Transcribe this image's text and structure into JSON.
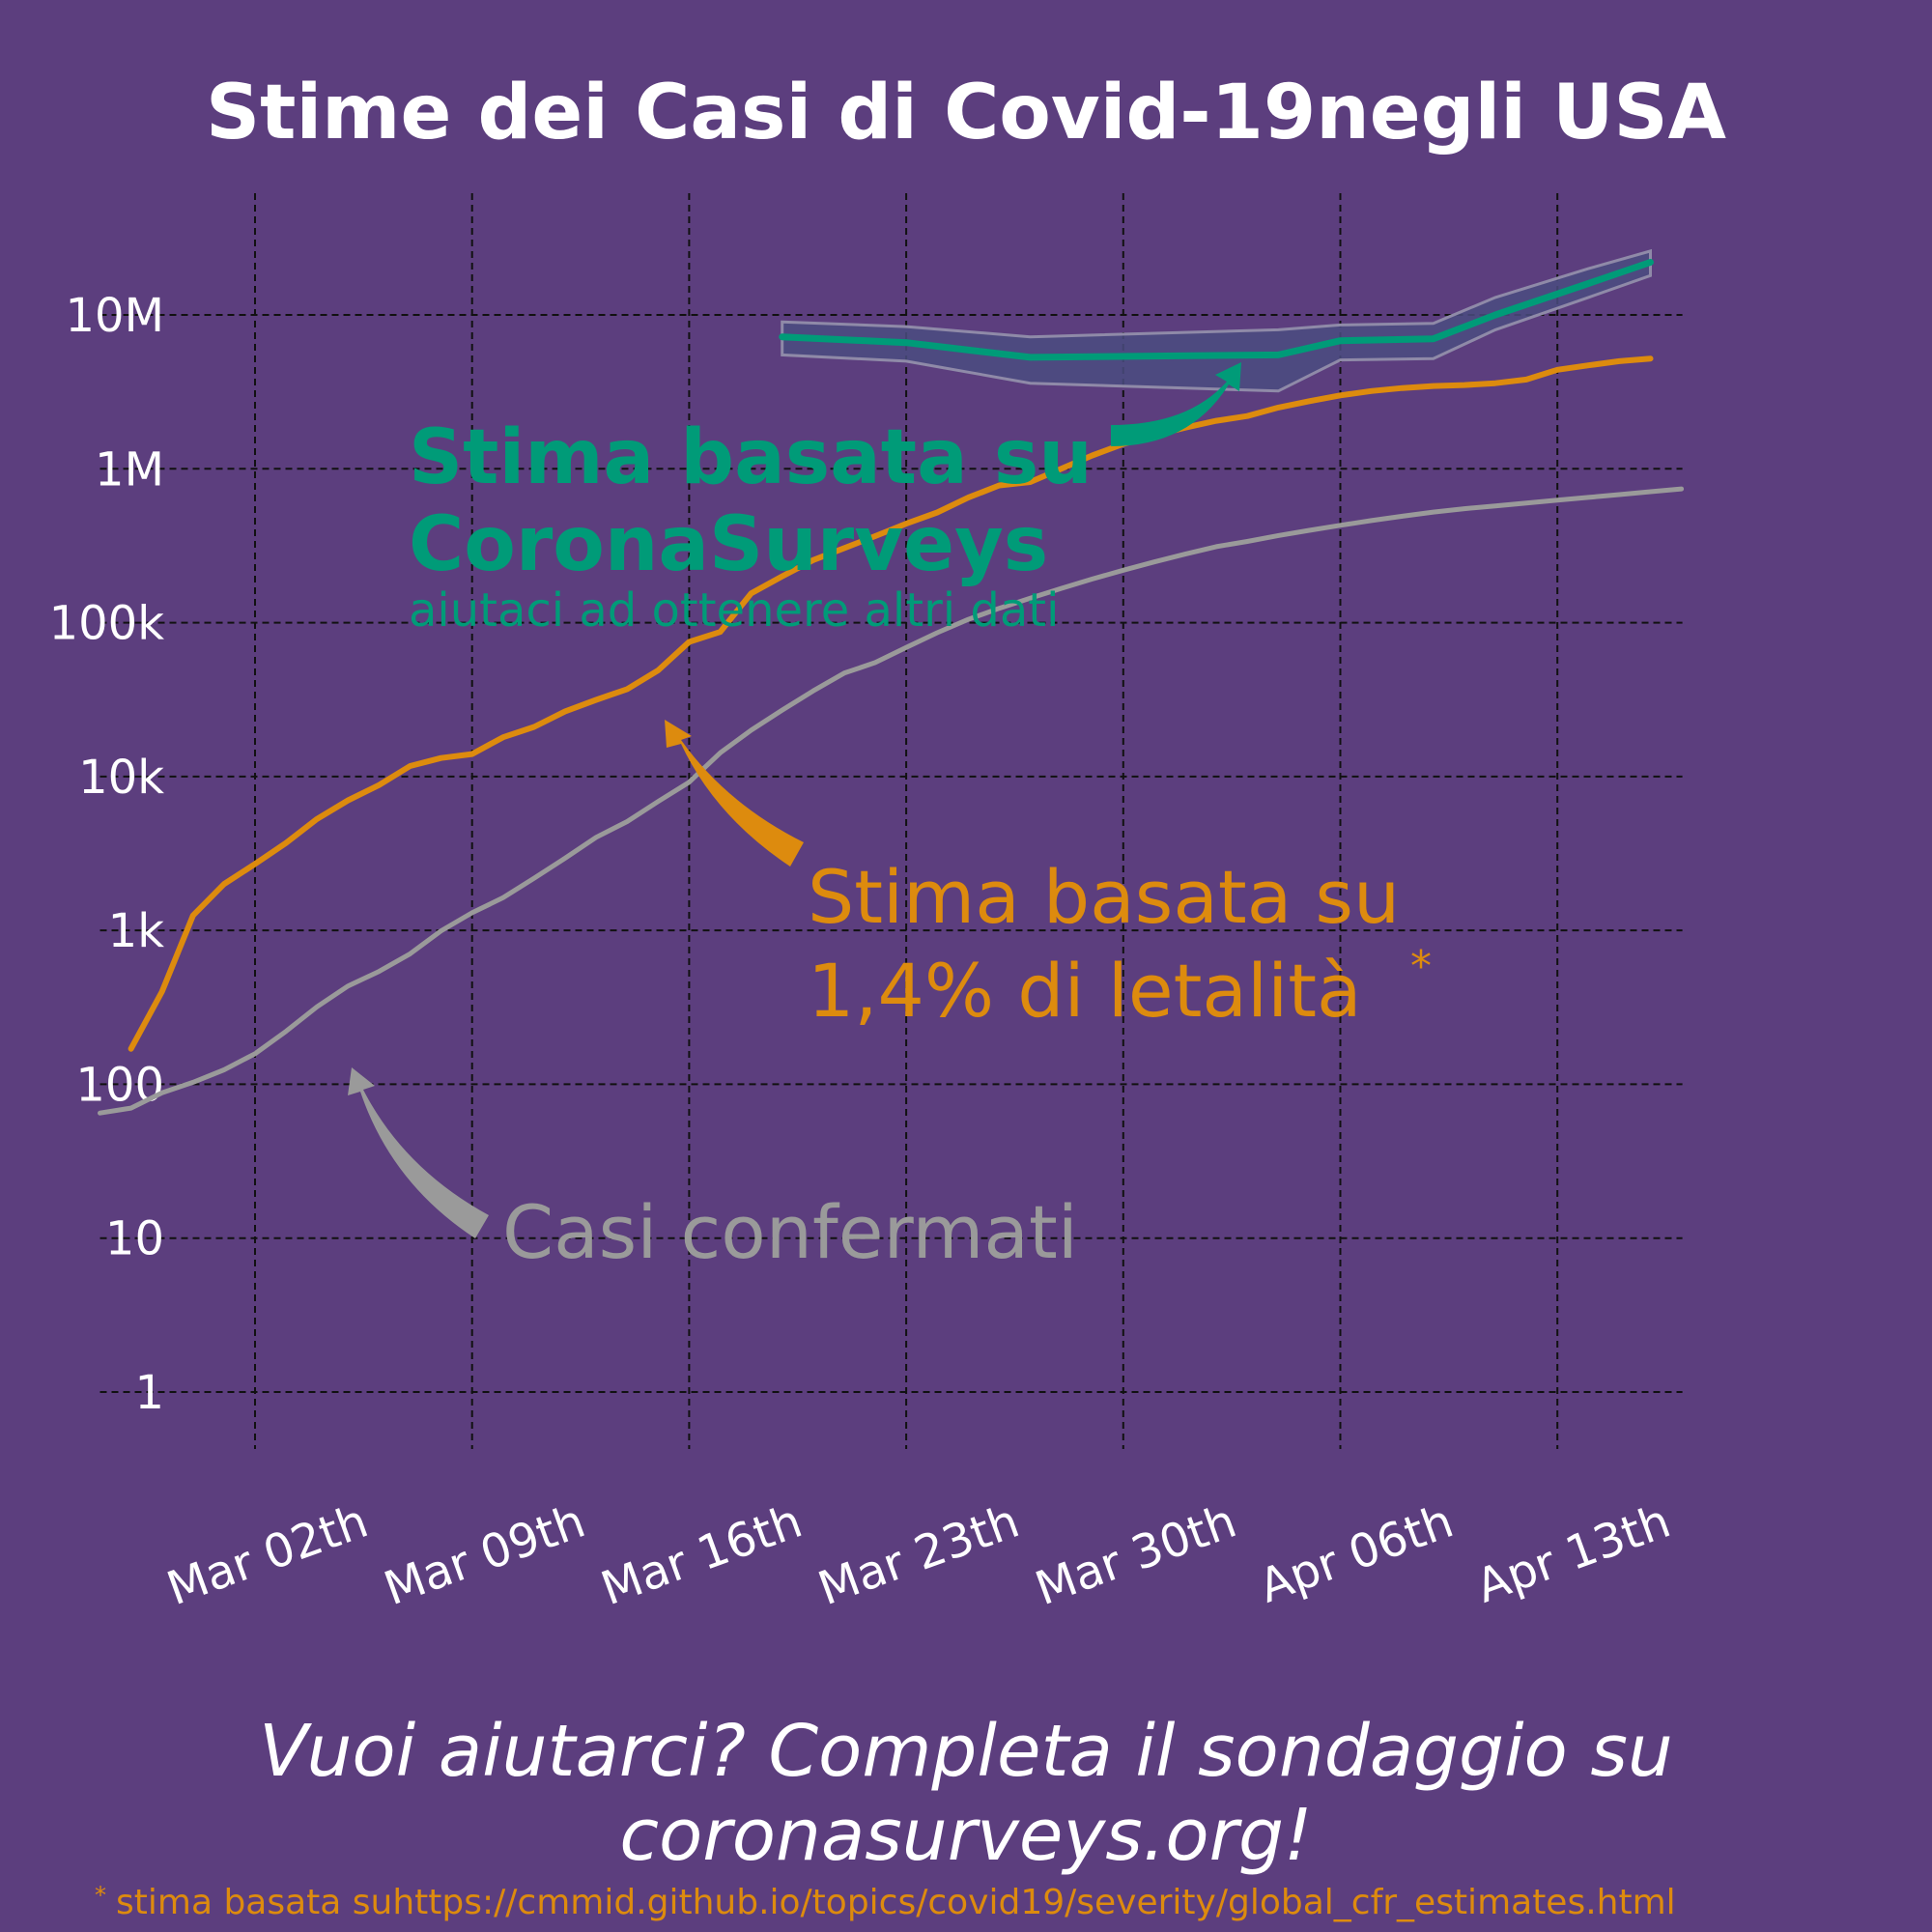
{
  "chart_data": {
    "type": "line",
    "title": "Stime dei Casi di Covid-19negli USA",
    "y_scale": "log",
    "ylim": [
      1,
      30000000
    ],
    "y_ticks": [
      {
        "value": 1,
        "label": "1"
      },
      {
        "value": 10,
        "label": "10"
      },
      {
        "value": 100,
        "label": "100"
      },
      {
        "value": 1000,
        "label": "1k"
      },
      {
        "value": 10000,
        "label": "10k"
      },
      {
        "value": 100000,
        "label": "100k"
      },
      {
        "value": 1000000,
        "label": "1M"
      },
      {
        "value": 10000000,
        "label": "10M"
      }
    ],
    "x_range": [
      "2020-02-26",
      "2020-04-17"
    ],
    "x_ticks": [
      {
        "date": "2020-03-02",
        "label": "Mar 02th"
      },
      {
        "date": "2020-03-09",
        "label": "Mar 09th"
      },
      {
        "date": "2020-03-16",
        "label": "Mar 16th"
      },
      {
        "date": "2020-03-23",
        "label": "Mar 23th"
      },
      {
        "date": "2020-03-30",
        "label": "Mar 30th"
      },
      {
        "date": "2020-04-06",
        "label": "Apr 06th"
      },
      {
        "date": "2020-04-13",
        "label": "Apr 13th"
      }
    ],
    "grid": true,
    "series": [
      {
        "key": "confirmed",
        "color": "#9a9a9a",
        "points": [
          [
            "2020-02-26",
            65
          ],
          [
            "2020-02-27",
            70
          ],
          [
            "2020-02-28",
            88
          ],
          [
            "2020-02-29",
            103
          ],
          [
            "2020-03-01",
            124
          ],
          [
            "2020-03-02",
            158
          ],
          [
            "2020-03-03",
            221
          ],
          [
            "2020-03-04",
            319
          ],
          [
            "2020-03-05",
            435
          ],
          [
            "2020-03-06",
            541
          ],
          [
            "2020-03-07",
            704
          ],
          [
            "2020-03-08",
            994
          ],
          [
            "2020-03-09",
            1301
          ],
          [
            "2020-03-10",
            1630
          ],
          [
            "2020-03-11",
            2183
          ],
          [
            "2020-03-12",
            2944
          ],
          [
            "2020-03-13",
            4026
          ],
          [
            "2020-03-14",
            5093
          ],
          [
            "2020-03-15",
            6884
          ],
          [
            "2020-03-16",
            9195
          ],
          [
            "2020-03-17",
            14245
          ],
          [
            "2020-03-18",
            20000
          ],
          [
            "2020-03-19",
            27000
          ],
          [
            "2020-03-20",
            36000
          ],
          [
            "2020-03-21",
            47000
          ],
          [
            "2020-03-22",
            55000
          ],
          [
            "2020-03-23",
            69000
          ],
          [
            "2020-03-24",
            86000
          ],
          [
            "2020-03-25",
            105000
          ],
          [
            "2020-03-26",
            124000
          ],
          [
            "2020-03-27",
            144000
          ],
          [
            "2020-03-28",
            167000
          ],
          [
            "2020-03-29",
            192000
          ],
          [
            "2020-03-30",
            219000
          ],
          [
            "2020-03-31",
            248000
          ],
          [
            "2020-04-01",
            279000
          ],
          [
            "2020-04-02",
            312000
          ],
          [
            "2020-04-03",
            337000
          ],
          [
            "2020-04-04",
            368000
          ],
          [
            "2020-04-05",
            398000
          ],
          [
            "2020-04-06",
            429000
          ],
          [
            "2020-04-07",
            461000
          ],
          [
            "2020-04-08",
            492000
          ],
          [
            "2020-04-09",
            523000
          ],
          [
            "2020-04-10",
            550000
          ],
          [
            "2020-04-11",
            574000
          ],
          [
            "2020-04-12",
            599000
          ],
          [
            "2020-04-13",
            626000
          ],
          [
            "2020-04-14",
            652000
          ],
          [
            "2020-04-15",
            680000
          ],
          [
            "2020-04-16",
            710000
          ],
          [
            "2020-04-17",
            740000
          ]
        ]
      },
      {
        "key": "cfr_estimate",
        "color": "#dd8b0e",
        "points": [
          [
            "2020-02-27",
            170
          ],
          [
            "2020-02-28",
            400
          ],
          [
            "2020-02-29",
            1250
          ],
          [
            "2020-03-01",
            2000
          ],
          [
            "2020-03-02",
            2700
          ],
          [
            "2020-03-03",
            3700
          ],
          [
            "2020-03-04",
            5300
          ],
          [
            "2020-03-05",
            7000
          ],
          [
            "2020-03-06",
            8800
          ],
          [
            "2020-03-07",
            11700
          ],
          [
            "2020-03-08",
            13200
          ],
          [
            "2020-03-09",
            14000
          ],
          [
            "2020-03-10",
            18000
          ],
          [
            "2020-03-11",
            21000
          ],
          [
            "2020-03-12",
            26500
          ],
          [
            "2020-03-13",
            31500
          ],
          [
            "2020-03-14",
            37000
          ],
          [
            "2020-03-15",
            49000
          ],
          [
            "2020-03-16",
            75000
          ],
          [
            "2020-03-17",
            87000
          ],
          [
            "2020-03-18",
            155000
          ],
          [
            "2020-03-19",
            200000
          ],
          [
            "2020-03-20",
            255000
          ],
          [
            "2020-03-21",
            305000
          ],
          [
            "2020-03-22",
            365000
          ],
          [
            "2020-03-23",
            440000
          ],
          [
            "2020-03-24",
            520000
          ],
          [
            "2020-03-25",
            650000
          ],
          [
            "2020-03-26",
            780000
          ],
          [
            "2020-03-27",
            820000
          ],
          [
            "2020-03-28",
            1000000
          ],
          [
            "2020-03-29",
            1220000
          ],
          [
            "2020-03-30",
            1450000
          ],
          [
            "2020-03-31",
            1650000
          ],
          [
            "2020-04-01",
            1850000
          ],
          [
            "2020-04-02",
            2050000
          ],
          [
            "2020-04-03",
            2200000
          ],
          [
            "2020-04-04",
            2500000
          ],
          [
            "2020-04-05",
            2750000
          ],
          [
            "2020-04-06",
            3000000
          ],
          [
            "2020-04-07",
            3200000
          ],
          [
            "2020-04-08",
            3350000
          ],
          [
            "2020-04-09",
            3450000
          ],
          [
            "2020-04-10",
            3500000
          ],
          [
            "2020-04-11",
            3600000
          ],
          [
            "2020-04-12",
            3800000
          ],
          [
            "2020-04-13",
            4400000
          ],
          [
            "2020-04-14",
            4700000
          ],
          [
            "2020-04-15",
            5000000
          ],
          [
            "2020-04-16",
            5200000
          ]
        ]
      },
      {
        "key": "coronasurveys",
        "color": "#009b78",
        "band_color": "#4a4c80",
        "points": [
          [
            "2020-03-19",
            7200000,
            5500000,
            9000000
          ],
          [
            "2020-03-23",
            6600000,
            5000000,
            8400000
          ],
          [
            "2020-03-27",
            5300000,
            3600000,
            7200000
          ],
          [
            "2020-04-04",
            5500000,
            3200000,
            8000000
          ],
          [
            "2020-04-06",
            6800000,
            5100000,
            8600000
          ],
          [
            "2020-04-09",
            7000000,
            5200000,
            8800000
          ],
          [
            "2020-04-11",
            10000000,
            8000000,
            13000000
          ],
          [
            "2020-04-14",
            16000000,
            13000000,
            20000000
          ],
          [
            "2020-04-16",
            22000000,
            18000000,
            26000000
          ]
        ]
      }
    ],
    "annotations": {
      "coronasurveys_line1": "Stima basata su",
      "coronasurveys_line2": "CoronaSurveys",
      "coronasurveys_sub": "aiutaci ad ottenere altri dati",
      "cfr_line1": "Stima basata su",
      "cfr_line2": "1,4% di letalità",
      "cfr_asterisk": "*",
      "confirmed": "Casi confermati"
    }
  },
  "cta": {
    "line1": "Vuoi aiutarci? Completa il sondaggio su",
    "line2": "coronasurveys.org!"
  },
  "footnote": {
    "marker": "*",
    "text": "stima basata suhttps://cmmid.github.io/topics/covid19/severity/global_cfr_estimates.html"
  }
}
